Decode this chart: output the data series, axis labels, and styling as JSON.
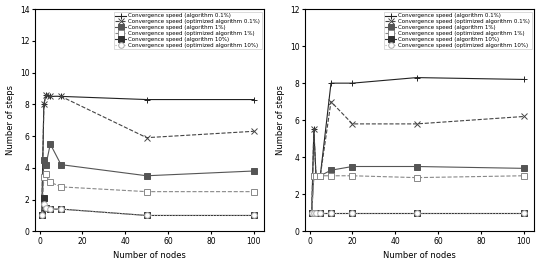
{
  "left": {
    "xlabel": "Number of nodes",
    "ylabel": "Number of steps",
    "ylim": [
      0,
      14
    ],
    "yticks": [
      0,
      2,
      4,
      6,
      8,
      10,
      12,
      14
    ],
    "xlim": [
      -2,
      105
    ],
    "xticks": [
      0,
      20,
      40,
      60,
      80,
      100
    ],
    "series": [
      {
        "label": "Convergence speed (algorithm 0.1%)",
        "x": [
          1,
          2,
          3,
          5,
          10,
          50,
          100
        ],
        "y": [
          1.0,
          8.0,
          8.6,
          8.5,
          8.5,
          8.3,
          8.3
        ],
        "color": "#222222",
        "linestyle": "-",
        "marker": "+",
        "linewidth": 0.8,
        "markersize": 5
      },
      {
        "label": "Convergence speed (optimized algorithm 0.1%)",
        "x": [
          1,
          2,
          3,
          5,
          10,
          50,
          100
        ],
        "y": [
          1.0,
          8.0,
          8.6,
          8.5,
          8.5,
          5.9,
          6.3
        ],
        "color": "#444444",
        "linestyle": "--",
        "marker": "x",
        "linewidth": 0.8,
        "markersize": 5
      },
      {
        "label": "Convergence speed (algorithm 1%)",
        "x": [
          1,
          2,
          3,
          5,
          10,
          50,
          100
        ],
        "y": [
          1.0,
          4.5,
          4.2,
          5.5,
          4.2,
          3.5,
          3.8
        ],
        "color": "#555555",
        "linestyle": "-",
        "marker": "s",
        "linewidth": 0.8,
        "markersize": 4,
        "markerfacecolor": "#555555"
      },
      {
        "label": "Convergence speed (optimized algorithm 1%)",
        "x": [
          1,
          2,
          3,
          5,
          10,
          50,
          100
        ],
        "y": [
          1.0,
          3.4,
          3.6,
          3.1,
          2.8,
          2.5,
          2.5
        ],
        "color": "#888888",
        "linestyle": "--",
        "marker": "s",
        "linewidth": 0.8,
        "markersize": 4,
        "markerfacecolor": "white"
      },
      {
        "label": "Convergence speed (algorithm 10%)",
        "x": [
          1,
          2,
          3,
          5,
          10,
          50,
          100
        ],
        "y": [
          1.0,
          2.1,
          1.5,
          1.4,
          1.4,
          1.0,
          1.0
        ],
        "color": "#333333",
        "linestyle": "-",
        "marker": "s",
        "linewidth": 0.8,
        "markersize": 4,
        "markerfacecolor": "#333333"
      },
      {
        "label": "Convergence speed (optimized algorithm 10%)",
        "x": [
          1,
          2,
          3,
          5,
          10,
          50,
          100
        ],
        "y": [
          1.0,
          1.7,
          1.5,
          1.4,
          1.4,
          1.0,
          1.0
        ],
        "color": "#aaaaaa",
        "linestyle": ":",
        "marker": "o",
        "linewidth": 0.8,
        "markersize": 4,
        "markerfacecolor": "white"
      }
    ]
  },
  "right": {
    "xlabel": "Number of nodes",
    "ylabel": "Number of steps",
    "ylim": [
      0,
      12
    ],
    "yticks": [
      0,
      2,
      4,
      6,
      8,
      10,
      12
    ],
    "xlim": [
      -2,
      105
    ],
    "xticks": [
      0,
      20,
      40,
      60,
      80,
      100
    ],
    "series": [
      {
        "label": "Convergence speed (algorithm 0.1%)",
        "x": [
          1,
          2,
          3,
          5,
          10,
          20,
          50,
          100
        ],
        "y": [
          1.0,
          5.5,
          3.0,
          3.0,
          8.0,
          8.0,
          8.3,
          8.2
        ],
        "color": "#222222",
        "linestyle": "-",
        "marker": "+",
        "linewidth": 0.8,
        "markersize": 5
      },
      {
        "label": "Convergence speed (optimized algorithm 0.1%)",
        "x": [
          1,
          2,
          3,
          5,
          10,
          20,
          50,
          100
        ],
        "y": [
          1.0,
          5.5,
          3.0,
          3.0,
          7.0,
          5.8,
          5.8,
          6.2
        ],
        "color": "#444444",
        "linestyle": "--",
        "marker": "x",
        "linewidth": 0.8,
        "markersize": 5
      },
      {
        "label": "Convergence speed (algorithm 1%)",
        "x": [
          1,
          2,
          3,
          5,
          10,
          20,
          50,
          100
        ],
        "y": [
          1.0,
          3.0,
          3.0,
          3.0,
          3.3,
          3.5,
          3.5,
          3.4
        ],
        "color": "#555555",
        "linestyle": "-",
        "marker": "s",
        "linewidth": 0.8,
        "markersize": 4,
        "markerfacecolor": "#555555"
      },
      {
        "label": "Convergence speed (optimized algorithm 1%)",
        "x": [
          1,
          2,
          3,
          5,
          10,
          20,
          50,
          100
        ],
        "y": [
          1.0,
          3.0,
          3.0,
          3.0,
          3.0,
          3.0,
          2.9,
          3.0
        ],
        "color": "#888888",
        "linestyle": "--",
        "marker": "s",
        "linewidth": 0.8,
        "markersize": 4,
        "markerfacecolor": "white"
      },
      {
        "label": "Convergence speed (algorithm 10%)",
        "x": [
          1,
          2,
          3,
          5,
          10,
          20,
          50,
          100
        ],
        "y": [
          1.0,
          1.0,
          1.0,
          1.0,
          1.0,
          1.0,
          1.0,
          1.0
        ],
        "color": "#333333",
        "linestyle": "-",
        "marker": "s",
        "linewidth": 0.8,
        "markersize": 4,
        "markerfacecolor": "#333333"
      },
      {
        "label": "Convergence speed (optimized algorithm 10%)",
        "x": [
          1,
          2,
          3,
          5,
          10,
          20,
          50,
          100
        ],
        "y": [
          1.0,
          1.0,
          1.0,
          1.0,
          1.0,
          1.0,
          1.0,
          1.0
        ],
        "color": "#aaaaaa",
        "linestyle": ":",
        "marker": "o",
        "linewidth": 0.8,
        "markersize": 4,
        "markerfacecolor": "white"
      }
    ]
  }
}
